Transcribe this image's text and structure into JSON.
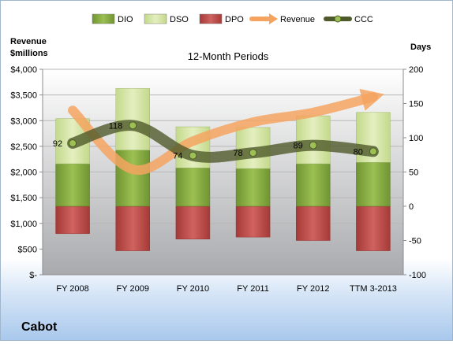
{
  "chart_data": {
    "type": "bar",
    "title": "12-Month Periods",
    "company": "Cabot",
    "categories": [
      "FY 2008",
      "FY 2009",
      "FY 2010",
      "FY 2011",
      "FY 2012",
      "TTM 3-2013"
    ],
    "left_axis": {
      "label_line1": "Revenue",
      "label_line2": "$millions",
      "range": [
        0,
        4000
      ],
      "ticks": [
        0,
        500,
        1000,
        1500,
        2000,
        2500,
        3000,
        3500,
        4000
      ],
      "tick_labels": [
        "$-",
        "$500",
        "$1,000",
        "$1,500",
        "$2,000",
        "$2,500",
        "$3,000",
        "$3,500",
        "$4,000"
      ]
    },
    "right_axis": {
      "label": "Days",
      "range": [
        -100,
        200
      ],
      "ticks": [
        -100,
        -50,
        0,
        50,
        100,
        150,
        200
      ],
      "tick_labels": [
        "-100",
        "-50",
        "0",
        "50",
        "100",
        "150",
        "200"
      ]
    },
    "series": [
      {
        "name": "DIO",
        "axis": "right",
        "type": "stacked-bar",
        "color": "#8db045",
        "values": [
          62,
          82,
          56,
          55,
          62,
          64
        ]
      },
      {
        "name": "DSO",
        "axis": "right",
        "type": "stacked-bar",
        "color": "#d7e6a6",
        "values": [
          66,
          90,
          60,
          60,
          70,
          73
        ]
      },
      {
        "name": "DPO",
        "axis": "right",
        "type": "bar-negative",
        "color": "#c0504d",
        "values": [
          -40,
          -65,
          -48,
          -45,
          -50,
          -65
        ]
      },
      {
        "name": "Revenue",
        "axis": "left",
        "type": "line",
        "color": "#f4a460",
        "values": [
          3200,
          2050,
          2600,
          2970,
          3160,
          3460
        ]
      },
      {
        "name": "CCC",
        "axis": "right",
        "type": "line",
        "color": "#5f6a3a",
        "values": [
          92,
          118,
          74,
          78,
          89,
          80
        ]
      }
    ],
    "data_labels": [
      "92",
      "118",
      "74",
      "78",
      "89",
      "80"
    ],
    "grid": true,
    "legend_position": "top"
  }
}
